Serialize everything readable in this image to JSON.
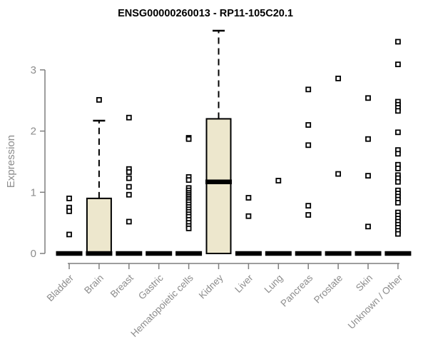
{
  "chart_data": {
    "type": "boxplot",
    "title": "ENSG00000260013 - RP11-105C20.1",
    "ylabel": "Expression",
    "xlabel": "",
    "ylim": [
      0,
      3.75
    ],
    "yticks": [
      0,
      1,
      2,
      3
    ],
    "grid": false,
    "legend": null,
    "colors": {
      "box_fill": "#ede7cd",
      "box_stroke": "#000000",
      "median": "#000000",
      "point_stroke": "#000000",
      "point_fill": "#ffffff",
      "axis": "#7f7f7f",
      "tick_label": "#8c8c8c",
      "title": "#000000"
    },
    "boxes": [
      {
        "label": "Bladder",
        "q1": 0,
        "median": 0,
        "q3": 0,
        "whisker_high": null,
        "outliers": [
          0.9,
          0.75,
          0.69,
          0.31
        ]
      },
      {
        "label": "Brain",
        "q1": 0,
        "median": 0,
        "q3": 0.9,
        "whisker_high": 2.17,
        "outliers": [
          2.51
        ]
      },
      {
        "label": "Breast",
        "q1": 0,
        "median": 0,
        "q3": 0,
        "whisker_high": null,
        "outliers": [
          2.22,
          1.38,
          1.33,
          1.23,
          1.09,
          0.96,
          0.52
        ]
      },
      {
        "label": "Gastric",
        "q1": 0,
        "median": 0,
        "q3": 0,
        "whisker_high": null,
        "outliers": []
      },
      {
        "label": "Hematopoietic cells",
        "q1": 0,
        "median": 0,
        "q3": 0,
        "whisker_high": null,
        "outliers": [
          1.89,
          1.87,
          1.25,
          1.2,
          1.07,
          1.03,
          0.99,
          0.96,
          0.93,
          0.9,
          0.87,
          0.84,
          0.8,
          0.76,
          0.72,
          0.68,
          0.64,
          0.6,
          0.55,
          0.5,
          0.45,
          0.41
        ]
      },
      {
        "label": "Kidney",
        "q1": 0,
        "median": 1.17,
        "q3": 2.2,
        "whisker_high": 3.64,
        "outliers": []
      },
      {
        "label": "Liver",
        "q1": 0,
        "median": 0,
        "q3": 0,
        "whisker_high": null,
        "outliers": [
          0.91,
          0.61
        ]
      },
      {
        "label": "Lung",
        "q1": 0,
        "median": 0,
        "q3": 0,
        "whisker_high": null,
        "outliers": [
          1.19
        ]
      },
      {
        "label": "Pancreas",
        "q1": 0,
        "median": 0,
        "q3": 0,
        "whisker_high": null,
        "outliers": [
          2.68,
          2.1,
          1.77,
          0.78,
          0.63
        ]
      },
      {
        "label": "Prostate",
        "q1": 0,
        "median": 0,
        "q3": 0,
        "whisker_high": null,
        "outliers": [
          2.86,
          1.3
        ]
      },
      {
        "label": "Skin",
        "q1": 0,
        "median": 0,
        "q3": 0,
        "whisker_high": null,
        "outliers": [
          2.54,
          1.87,
          1.27,
          0.44
        ]
      },
      {
        "label": "Unknown / Other",
        "q1": 0,
        "median": 0,
        "q3": 0,
        "whisker_high": null,
        "outliers": [
          3.46,
          3.09,
          2.48,
          2.43,
          2.38,
          2.33,
          1.98,
          1.69,
          1.63,
          1.45,
          1.39,
          1.28,
          1.23,
          1.17,
          1.03,
          0.98,
          0.93,
          0.88,
          0.83,
          0.67,
          0.62,
          0.57,
          0.52,
          0.47,
          0.42,
          0.37,
          0.32
        ]
      }
    ]
  }
}
